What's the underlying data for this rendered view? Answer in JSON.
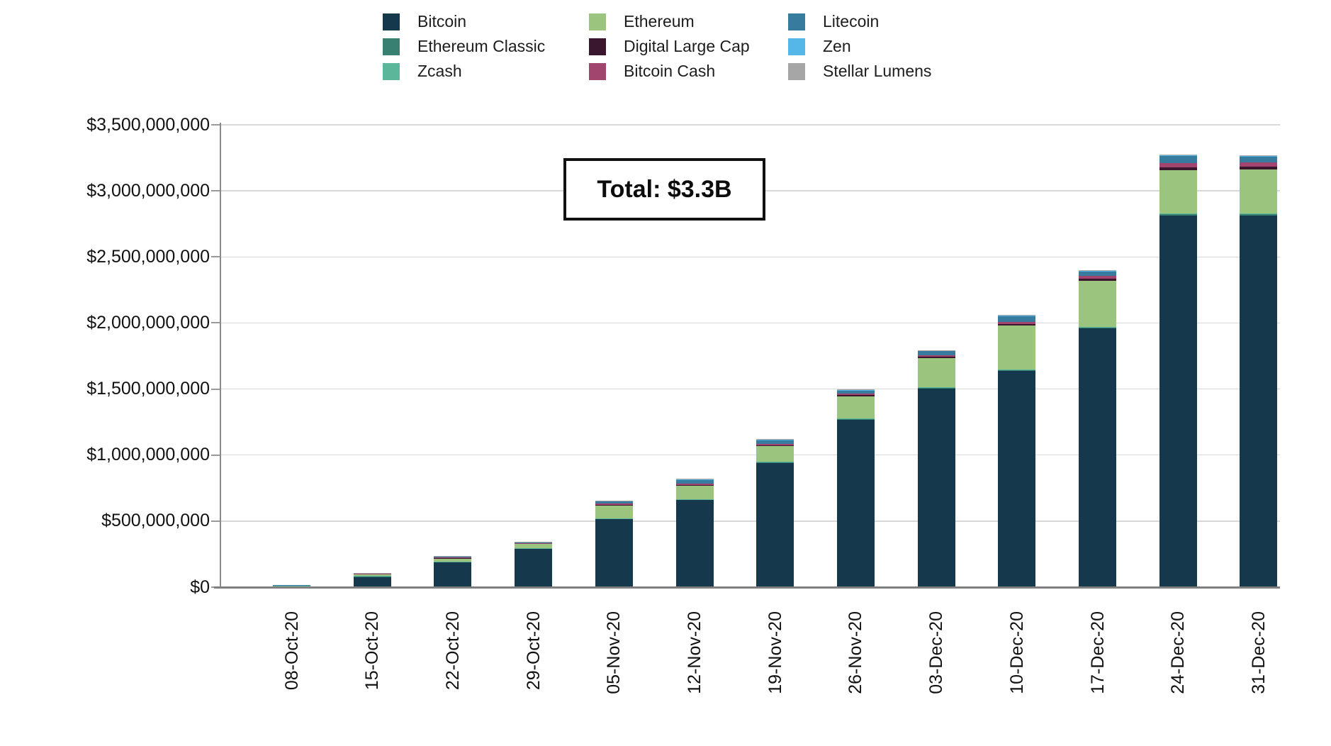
{
  "chart_data": {
    "type": "bar",
    "variant": "stacked",
    "title": "",
    "xlabel": "",
    "ylabel": "",
    "unit": "USD",
    "ylim": [
      0,
      3500000000
    ],
    "grid": "horizontal",
    "legend_position": "top",
    "x_tick_rotation": 90,
    "annotation": {
      "text": "Total: $3.3B"
    },
    "y_tick_labels": [
      "$0",
      "$500,000,000",
      "$1,000,000,000",
      "$1,500,000,000",
      "$2,000,000,000",
      "$2,500,000,000",
      "$3,000,000,000",
      "$3,500,000,000"
    ],
    "categories": [
      "08-Oct-20",
      "15-Oct-20",
      "22-Oct-20",
      "29-Oct-20",
      "05-Nov-20",
      "12-Nov-20",
      "19-Nov-20",
      "26-Nov-20",
      "03-Dec-20",
      "10-Dec-20",
      "17-Dec-20",
      "24-Dec-20",
      "31-Dec-20"
    ],
    "series": [
      {
        "name": "Bitcoin",
        "color": "#16384c",
        "values": [
          10000000,
          81000000,
          188000000,
          290000000,
          515000000,
          660000000,
          939000000,
          1267000000,
          1503000000,
          1637000000,
          1959000000,
          2813000000,
          2813000000
        ]
      },
      {
        "name": "Ethereum Classic",
        "color": "#388172",
        "values": [
          1000000,
          2000000,
          3000000,
          4000000,
          5000000,
          5000000,
          6000000,
          7000000,
          8000000,
          8000000,
          9000000,
          10000000,
          10000000
        ]
      },
      {
        "name": "Zcash",
        "color": "#5bb69a",
        "values": [
          500000,
          1000000,
          1000000,
          2000000,
          2000000,
          2000000,
          3000000,
          3000000,
          3000000,
          4000000,
          4000000,
          5000000,
          5000000
        ]
      },
      {
        "name": "Ethereum",
        "color": "#9bc47f",
        "values": [
          4000000,
          16000000,
          27000000,
          32000000,
          97000000,
          102000000,
          118000000,
          166000000,
          220000000,
          333000000,
          349000000,
          327000000,
          333000000
        ]
      },
      {
        "name": "Digital Large Cap",
        "color": "#3a172e",
        "values": [
          500000,
          2000000,
          3000000,
          3000000,
          5000000,
          6000000,
          8000000,
          10000000,
          11000000,
          11000000,
          16000000,
          21000000,
          21000000
        ]
      },
      {
        "name": "Bitcoin Cash",
        "color": "#a2456e",
        "values": [
          500000,
          2000000,
          4000000,
          4000000,
          11000000,
          8000000,
          10000000,
          12000000,
          11000000,
          16000000,
          21000000,
          32000000,
          32000000
        ]
      },
      {
        "name": "Litecoin",
        "color": "#377b9f",
        "values": [
          1000000,
          3000000,
          8000000,
          8000000,
          16000000,
          32000000,
          30000000,
          25000000,
          32000000,
          43000000,
          32000000,
          54000000,
          43000000
        ]
      },
      {
        "name": "Zen",
        "color": "#54b7e8",
        "values": [
          300000,
          500000,
          1000000,
          1000000,
          2000000,
          2000000,
          3000000,
          3000000,
          3000000,
          4000000,
          4000000,
          6000000,
          6000000
        ]
      },
      {
        "name": "Stellar Lumens",
        "color": "#a6a6a6",
        "values": [
          200000,
          500000,
          1000000,
          1000000,
          2000000,
          2000000,
          3000000,
          3000000,
          3000000,
          4000000,
          4000000,
          5000000,
          5000000
        ]
      }
    ]
  }
}
